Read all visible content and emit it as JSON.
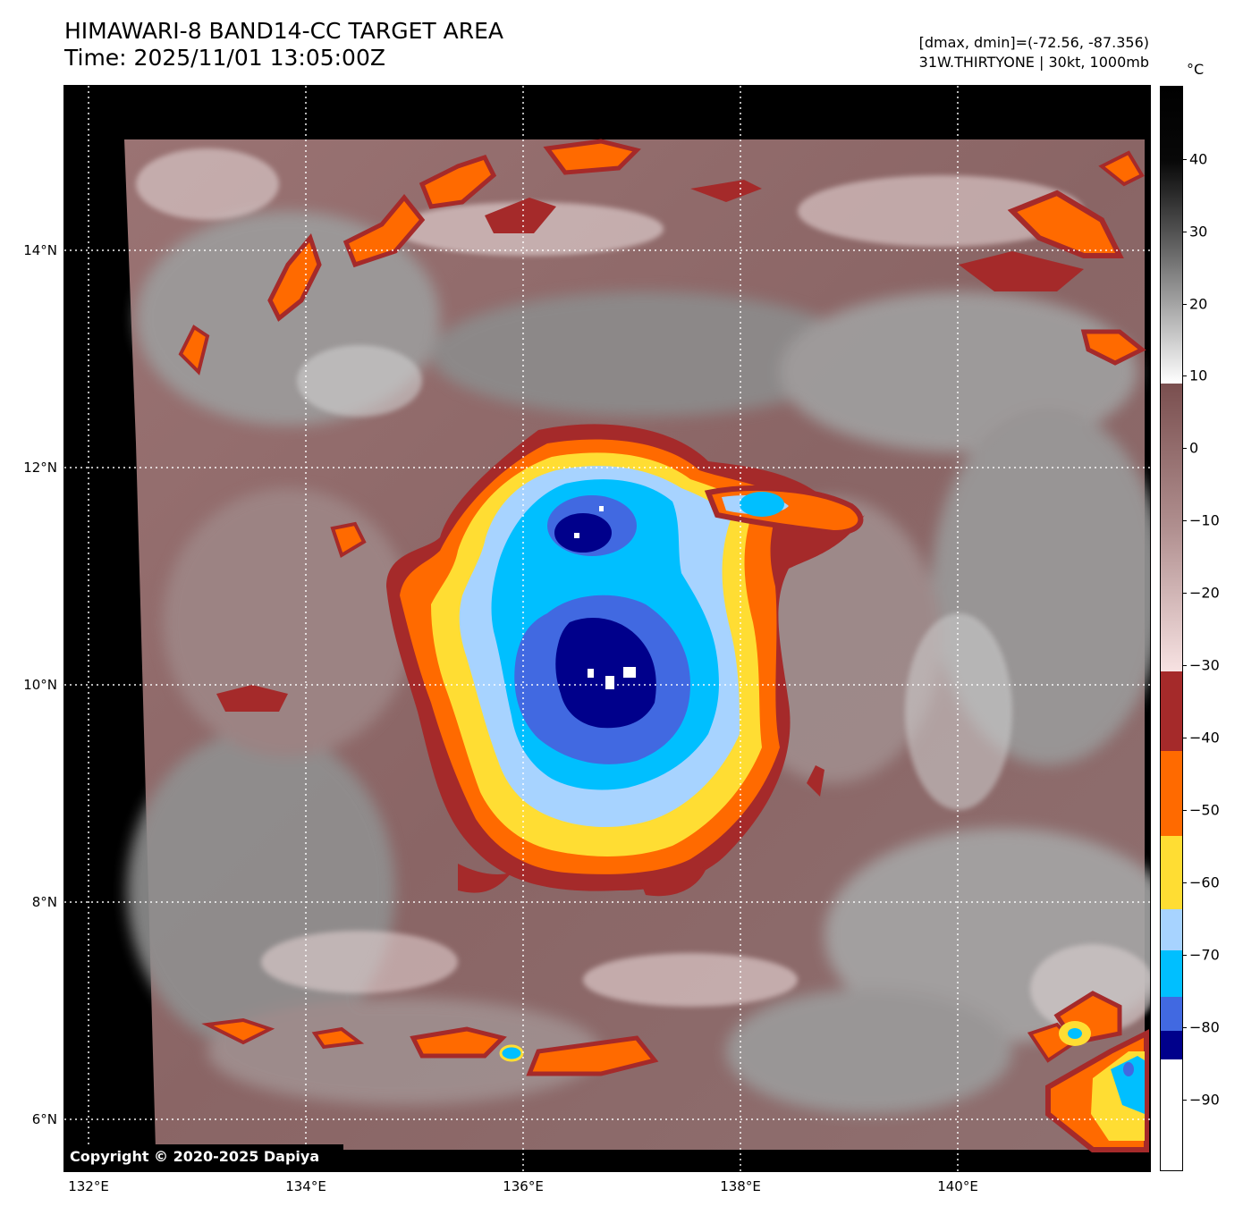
{
  "header": {
    "title_line1": "HIMAWARI-8 BAND14-CC TARGET AREA",
    "title_line2": "Time: 2025/11/01 13:05:00Z",
    "info_line1": "[dmax, dmin]=(-72.56, -87.356)",
    "info_line2": "31W.THIRTYONE | 30kt, 1000mb"
  },
  "map": {
    "lon_labels": [
      "132°E",
      "134°E",
      "136°E",
      "138°E",
      "140°E"
    ],
    "lat_labels": [
      "14°N",
      "12°N",
      "10°N",
      "8°N",
      "6°N"
    ],
    "copyright": "Copyright © 2020-2025 Dapiya"
  },
  "colorbar": {
    "unit": "°C",
    "tick_labels": [
      "40",
      "30",
      "20",
      "10",
      "0",
      "−10",
      "−20",
      "−30",
      "−40",
      "−50",
      "−60",
      "−70",
      "−80",
      "−90"
    ],
    "colors": {
      "white": "#ffffff",
      "navy": "#00008b",
      "royal_blue": "#4169e1",
      "deep_sky_blue": "#00bfff",
      "light_sky_blue": "#a7d3ff",
      "gold": "#ffdd33",
      "orange": "#ff6a00",
      "brown_red": "#a52a2a",
      "pinkish": "#f5dcdc",
      "mauve": "#8b5a5a",
      "light_gray": "#e0e0e0",
      "gray": "#808080",
      "black": "#000000"
    }
  }
}
